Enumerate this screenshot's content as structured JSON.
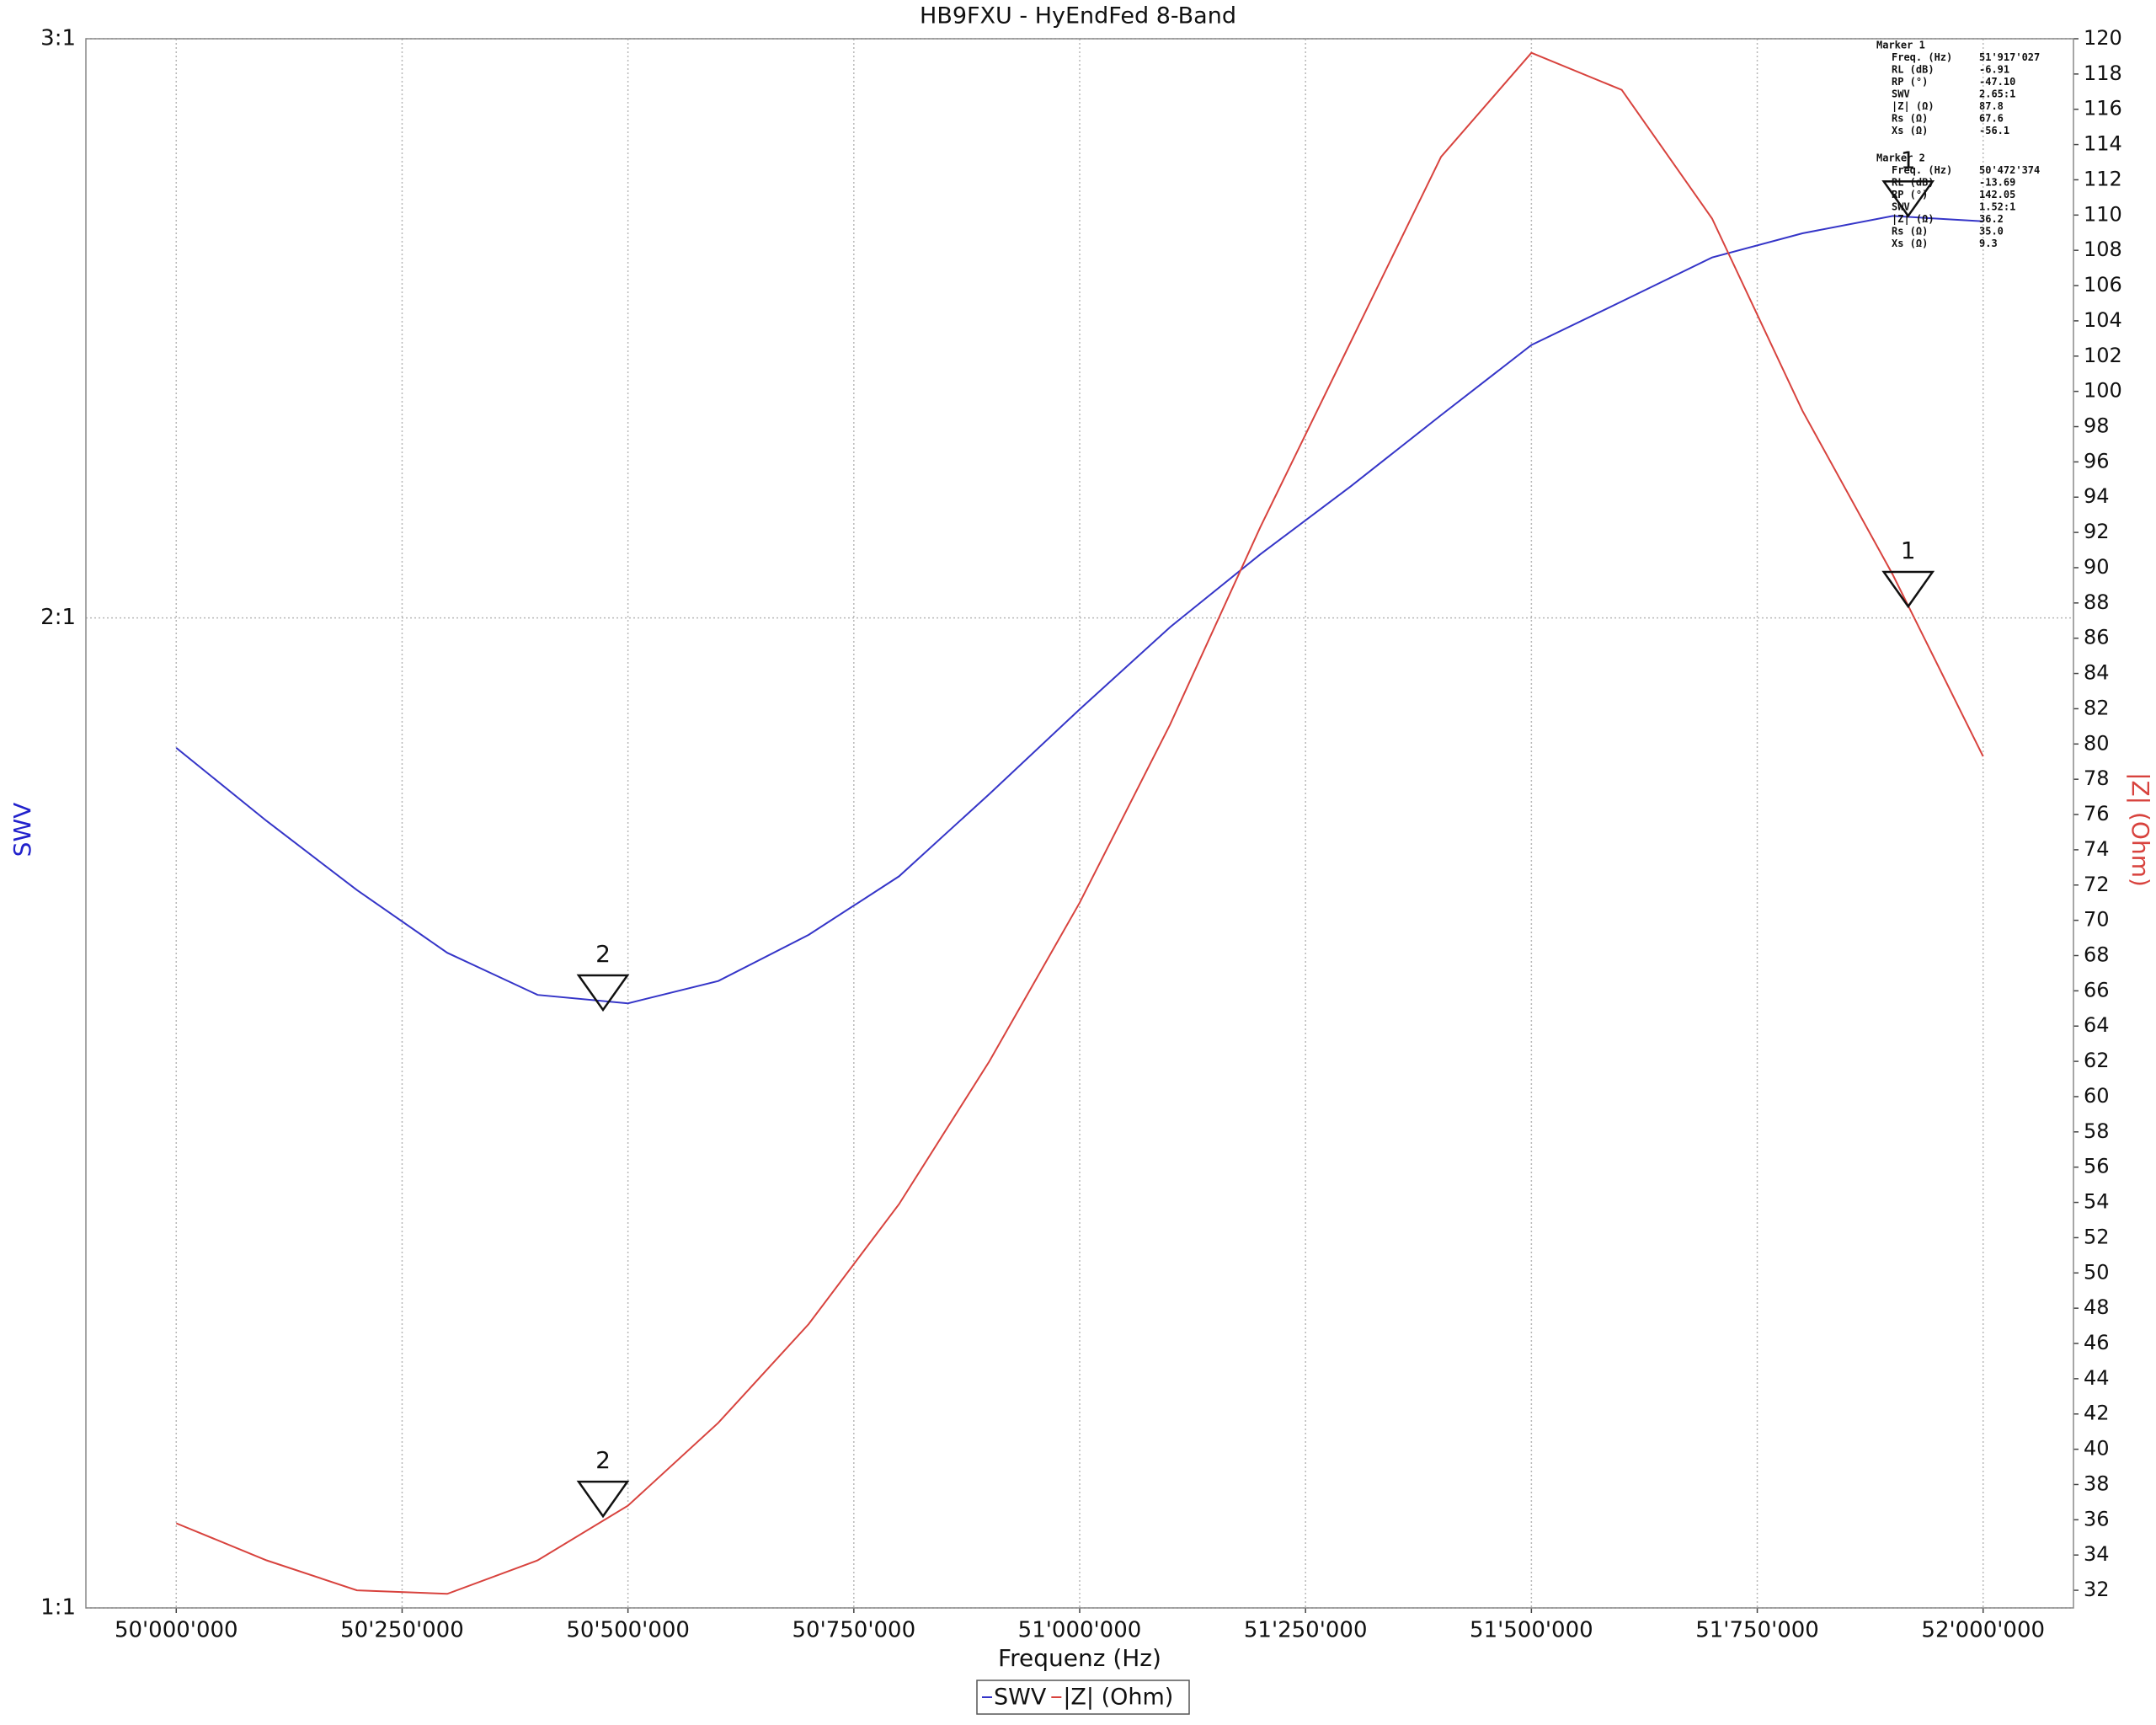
{
  "chart_data": {
    "type": "line",
    "title": "HB9FXU - HyEndFed 8-Band",
    "x_label": "Frequenz (Hz)",
    "y_label": "SWV",
    "y2_label": "|Z| (Ohm)",
    "x": [
      50000000,
      50100000,
      50200000,
      50300000,
      50400000,
      50500000,
      50600000,
      50700000,
      50800000,
      50900000,
      51000000,
      51100000,
      51200000,
      51300000,
      51400000,
      51500000,
      51600000,
      51700000,
      51800000,
      51900000,
      52000000
    ],
    "series": [
      {
        "name": "SWV",
        "color": "#3535c8",
        "axis": "y",
        "values": [
          1.826,
          1.735,
          1.653,
          1.582,
          1.536,
          1.527,
          1.551,
          1.602,
          1.669,
          1.768,
          1.876,
          1.987,
          2.091,
          2.193,
          2.305,
          2.421,
          2.496,
          2.574,
          2.618,
          2.65,
          2.64
        ]
      },
      {
        "name": "|Z| (Ohm)",
        "color": "#d8433e",
        "axis": "y2",
        "values": [
          35.8,
          33.7,
          32.0,
          31.8,
          33.7,
          36.8,
          41.5,
          47.1,
          53.9,
          62.0,
          71.0,
          81.1,
          92.3,
          102.8,
          113.3,
          119.2,
          117.1,
          109.8,
          98.9,
          89.6,
          79.3
        ]
      }
    ],
    "xlim": [
      49900000,
      52100000
    ],
    "xticks": [
      {
        "value": 50000000,
        "label": "50'000'000"
      },
      {
        "value": 50250000,
        "label": "50'250'000"
      },
      {
        "value": 50500000,
        "label": "50'500'000"
      },
      {
        "value": 50750000,
        "label": "50'750'000"
      },
      {
        "value": 51000000,
        "label": "51'000'000"
      },
      {
        "value": 51250000,
        "label": "51'250'000"
      },
      {
        "value": 51500000,
        "label": "51'500'000"
      },
      {
        "value": 51750000,
        "label": "51'750'000"
      },
      {
        "value": 52000000,
        "label": "52'000'000"
      }
    ],
    "ylim": [
      1,
      3
    ],
    "y_log": true,
    "yticks": [
      {
        "value": 1,
        "label": "1:1"
      },
      {
        "value": 2,
        "label": "2:1"
      },
      {
        "value": 3,
        "label": "3:1"
      }
    ],
    "y2lim": [
      31,
      120
    ],
    "y2ticks": [
      32,
      34,
      36,
      38,
      40,
      42,
      44,
      46,
      48,
      50,
      52,
      54,
      56,
      58,
      60,
      62,
      64,
      66,
      68,
      70,
      72,
      74,
      76,
      78,
      80,
      82,
      84,
      86,
      88,
      90,
      92,
      94,
      96,
      98,
      100,
      102,
      104,
      106,
      108,
      110,
      112,
      114,
      116,
      118,
      120
    ],
    "grid": true,
    "legend": "bottom",
    "markers": [
      {
        "label": "1",
        "title": "Marker 1",
        "x": 51917027,
        "swv": 2.65,
        "z": 87.8,
        "rows": [
          [
            "Freq. (Hz)",
            "51'917'027"
          ],
          [
            "RL (dB)",
            "-6.91"
          ],
          [
            "RP (°)",
            "-47.10"
          ],
          [
            "SWV",
            "2.65:1"
          ],
          [
            "|Z| (Ω)",
            "87.8"
          ],
          [
            "Rs (Ω)",
            "67.6"
          ],
          [
            "Xs (Ω)",
            "-56.1"
          ]
        ]
      },
      {
        "label": "2",
        "title": "Marker 2",
        "x": 50472374,
        "swv": 1.52,
        "z": 36.2,
        "rows": [
          [
            "Freq. (Hz)",
            "50'472'374"
          ],
          [
            "RL (dB)",
            "-13.69"
          ],
          [
            "RP (°)",
            "142.05"
          ],
          [
            "SWV",
            "1.52:1"
          ],
          [
            "|Z| (Ω)",
            "36.2"
          ],
          [
            "Rs (Ω)",
            "35.0"
          ],
          [
            "Xs (Ω)",
            "9.3"
          ]
        ]
      }
    ]
  }
}
